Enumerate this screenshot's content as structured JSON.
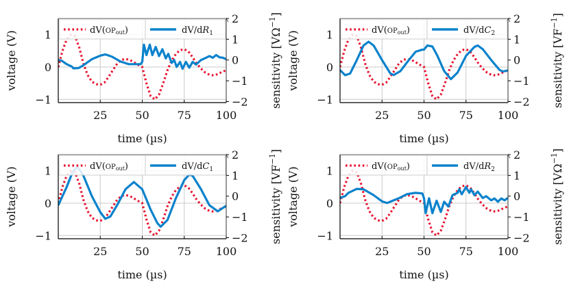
{
  "colors": {
    "voltage": "#e8112d",
    "sensitivity": "#0a82cc",
    "grid": "#c8c8c8"
  },
  "chart_data": [
    {
      "type": "line",
      "xlabel": "time (µs)",
      "ylabel": "voltage (V)",
      "y2label": {
        "text": "sensitivity [VΩ",
        "exp": "−1",
        "close": "]"
      },
      "xlim": [
        0,
        100
      ],
      "ylim": [
        -1.1,
        1.5
      ],
      "y2lim": [
        -2.05,
        2
      ],
      "xticks": [
        "25",
        "50",
        "75",
        "100"
      ],
      "yticks": [
        "−1",
        "0",
        "1"
      ],
      "y2ticks": [
        "−2",
        "−1",
        "0",
        "1",
        "2"
      ],
      "grid": true,
      "legend_position": "top",
      "legend": [
        {
          "prefix": "dV(",
          "sc": "OP",
          "sub": "out",
          "suffix": ")"
        },
        {
          "prefix": "dV/d",
          "var": "R",
          "sub": "1",
          "suffix": ""
        }
      ],
      "sensitivity": {
        "t": [
          0,
          2,
          5,
          8,
          9,
          12,
          15,
          20,
          25,
          28,
          32,
          37,
          42,
          49,
          50,
          51,
          52.5,
          54.5,
          56,
          58,
          60,
          62,
          64,
          65.5,
          67.5,
          69,
          70.5,
          72.5,
          74,
          76,
          78,
          80,
          82,
          85,
          88,
          90,
          92,
          94,
          96,
          98,
          100
        ],
        "v": [
          0,
          -0.03,
          -0.2,
          -0.31,
          -0.4,
          -0.39,
          -0.25,
          0.04,
          0.21,
          0.27,
          0.16,
          -0.07,
          -0.2,
          -0.2,
          -0.09,
          0.74,
          0.24,
          0.74,
          0.24,
          0.63,
          0.19,
          0.52,
          0.08,
          0.3,
          -0.14,
          0,
          -0.33,
          -0.09,
          -0.42,
          -0.09,
          -0.37,
          -0.09,
          -0.22,
          0,
          0.11,
          0.19,
          0.11,
          0.24,
          0.13,
          0.11,
          0.04
        ]
      }
    },
    {
      "type": "line",
      "xlabel": "time (µs)",
      "ylabel": "voltage (V)",
      "y2label": {
        "text": "sensitivity [VF",
        "exp": "−1",
        "close": "]"
      },
      "xlim": [
        0,
        100
      ],
      "ylim": [
        -1.1,
        1.5
      ],
      "y2lim": [
        -2.05,
        2
      ],
      "xticks": [
        "25",
        "50",
        "75",
        "100"
      ],
      "yticks": [
        "−1",
        "0",
        "1"
      ],
      "y2ticks": [
        "−2",
        "−1",
        "0",
        "1",
        "2"
      ],
      "grid": true,
      "legend_position": "top",
      "legend": [
        {
          "prefix": "dV(",
          "sc": "OP",
          "sub": "out",
          "suffix": ")"
        },
        {
          "prefix": "dV/d",
          "var": "C",
          "sub": "2",
          "suffix": ""
        }
      ],
      "sensitivity": {
        "t": [
          0,
          3,
          6,
          10,
          14,
          17,
          20,
          25,
          30,
          32,
          36,
          40,
          45,
          49,
          50,
          52,
          55,
          58,
          62,
          66,
          70,
          75,
          80,
          82,
          85,
          90,
          95,
          97,
          100
        ],
        "v": [
          -0.48,
          -0.73,
          -0.65,
          0,
          0.7,
          0.88,
          0.7,
          0,
          -0.65,
          -0.72,
          -0.53,
          -0.1,
          0.4,
          0.5,
          0.5,
          0.7,
          0.65,
          0.2,
          -0.53,
          -0.92,
          -0.6,
          0.2,
          0.63,
          0.7,
          0.52,
          0,
          -0.48,
          -0.55,
          -0.5
        ]
      }
    },
    {
      "type": "line",
      "xlabel": "time (µs)",
      "ylabel": "voltage (V)",
      "y2label": {
        "text": "sensitivity [VF",
        "exp": "−1",
        "close": "]"
      },
      "xlim": [
        0,
        100
      ],
      "ylim": [
        -1.1,
        1.5
      ],
      "y2lim": [
        -2.05,
        2
      ],
      "xticks": [
        "25",
        "50",
        "75",
        "100"
      ],
      "yticks": [
        "−1",
        "0",
        "1"
      ],
      "y2ticks": [
        "−2",
        "−1",
        "0",
        "1",
        "2"
      ],
      "grid": true,
      "legend_position": "top",
      "legend": [
        {
          "prefix": "dV(",
          "sc": "OP",
          "sub": "out",
          "suffix": ")"
        },
        {
          "prefix": "dV/d",
          "var": "C",
          "sub": "1",
          "suffix": ""
        }
      ],
      "sensitivity": {
        "t": [
          0,
          5,
          8.7,
          11.5,
          15,
          20,
          25,
          28,
          31,
          35,
          40,
          45,
          50,
          55,
          59,
          61,
          65,
          70,
          75,
          78,
          80,
          85,
          90,
          95,
          100
        ],
        "v": [
          -0.44,
          0.44,
          1.2,
          1.42,
          0.98,
          0,
          -0.77,
          -1.09,
          -0.98,
          -0.44,
          0.33,
          0.68,
          0.33,
          -0.65,
          -1.3,
          -1.47,
          -1.15,
          -0.1,
          0.77,
          1.04,
          0.98,
          0.33,
          -0.44,
          -0.73,
          -0.46
        ]
      }
    },
    {
      "type": "line",
      "xlabel": "time (µs)",
      "ylabel": "voltage (V)",
      "y2label": {
        "text": "sensitivity [VΩ",
        "exp": "−1",
        "close": "]"
      },
      "xlim": [
        0,
        100
      ],
      "ylim": [
        -1.1,
        1.5
      ],
      "y2lim": [
        -2.05,
        2
      ],
      "xticks": [
        "25",
        "50",
        "75",
        "100"
      ],
      "yticks": [
        "−1",
        "0",
        "1"
      ],
      "y2ticks": [
        "−2",
        "−1",
        "0",
        "1",
        "2"
      ],
      "grid": true,
      "legend_position": "top",
      "legend": [
        {
          "prefix": "dV(",
          "sc": "OP",
          "sub": "out",
          "suffix": ")"
        },
        {
          "prefix": "dV/d",
          "var": "R",
          "sub": "2",
          "suffix": ""
        }
      ],
      "sensitivity": {
        "t": [
          0,
          3,
          5,
          10,
          14,
          20,
          25,
          28,
          35,
          40,
          45,
          49,
          50,
          51,
          53,
          55,
          57.5,
          60,
          62,
          64.5,
          67,
          70,
          71,
          72.5,
          75,
          77,
          78,
          80,
          82,
          85,
          87,
          90,
          92,
          94,
          96,
          98,
          100
        ],
        "v": [
          -0.08,
          0,
          0.16,
          0.35,
          0.33,
          0.05,
          -0.25,
          -0.33,
          -0.1,
          0.1,
          0.16,
          0.13,
          -0.1,
          -0.82,
          -0.1,
          -0.82,
          -0.22,
          -0.76,
          -0.27,
          -0.5,
          0.05,
          0.16,
          0.33,
          0.09,
          0.44,
          0.16,
          0.33,
          0.05,
          0.22,
          -0.09,
          0,
          -0.2,
          -0.11,
          -0.27,
          -0.11,
          -0.2,
          -0.08
        ]
      }
    }
  ],
  "voltage_signal": {
    "t": [
      0,
      2.5,
      5,
      7.5,
      10,
      12.5,
      15,
      17.5,
      20,
      22.5,
      25,
      27.5,
      30,
      32.5,
      35,
      37.5,
      40,
      42.5,
      45,
      47.5,
      50,
      52.5,
      55,
      57.5,
      60,
      62.5,
      65,
      67.5,
      70,
      72.5,
      75,
      77.5,
      80,
      82.5,
      85,
      87.5,
      90,
      92.5,
      95,
      97.5,
      100
    ],
    "v": [
      0,
      0.5,
      0.85,
      1.0,
      0.95,
      0.6,
      0.1,
      -0.25,
      -0.45,
      -0.53,
      -0.55,
      -0.48,
      -0.3,
      -0.1,
      0.1,
      0.22,
      0.25,
      0.22,
      0.15,
      0.07,
      0,
      -0.5,
      -0.9,
      -1.0,
      -0.85,
      -0.5,
      -0.1,
      0.2,
      0.4,
      0.52,
      0.55,
      0.48,
      0.3,
      0.1,
      -0.05,
      -0.17,
      -0.24,
      -0.26,
      -0.22,
      -0.15,
      -0.1
    ]
  }
}
